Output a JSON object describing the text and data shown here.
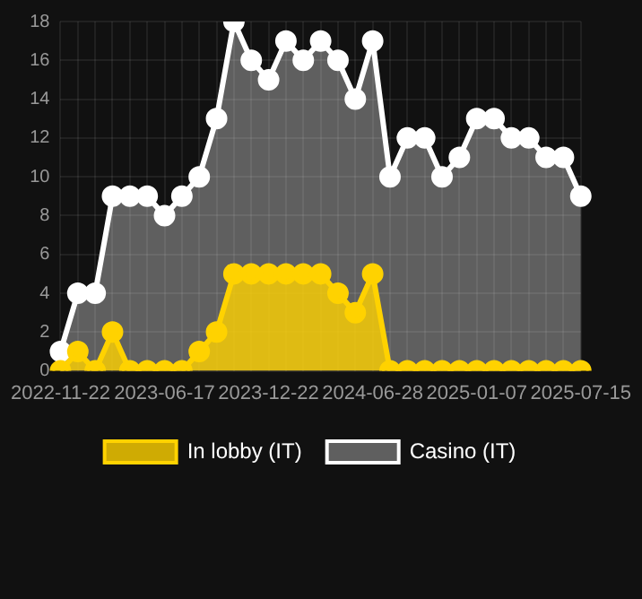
{
  "chart_data": {
    "type": "area",
    "categories": [
      "2022-11-22",
      null,
      null,
      null,
      null,
      null,
      "2023-06-17",
      null,
      null,
      null,
      null,
      null,
      "2023-12-22",
      null,
      null,
      null,
      null,
      null,
      "2024-06-28",
      null,
      null,
      null,
      null,
      null,
      "2025-01-07",
      null,
      null,
      null,
      null,
      null,
      "2025-07-15"
    ],
    "series": [
      {
        "name": "In lobby (IT)",
        "color": "#ffd200",
        "values": [
          0,
          1,
          0,
          2,
          0,
          0,
          0,
          0,
          1,
          2,
          5,
          5,
          5,
          5,
          5,
          5,
          4,
          3,
          5,
          0,
          0,
          0,
          0,
          0,
          0,
          0,
          0,
          0,
          0,
          0,
          0
        ]
      },
      {
        "name": "Casino (IT)",
        "color": "#ffffff",
        "values": [
          1,
          4,
          4,
          9,
          9,
          9,
          8,
          9,
          10,
          13,
          18,
          16,
          15,
          17,
          16,
          17,
          16,
          14,
          17,
          10,
          12,
          12,
          10,
          11,
          13,
          13,
          12,
          12,
          11,
          11,
          9
        ]
      }
    ],
    "ylim": [
      0,
      18
    ],
    "yticks": [
      0,
      2,
      4,
      6,
      8,
      10,
      12,
      14,
      16,
      18
    ],
    "grid": true,
    "legend": "bottom",
    "marker": "circle"
  }
}
